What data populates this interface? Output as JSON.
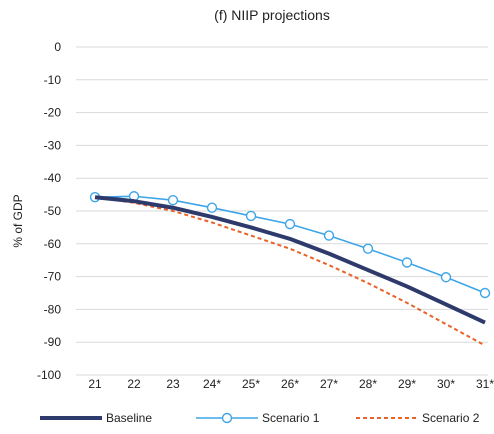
{
  "chart_data": {
    "type": "line",
    "title": "(f) NIIP projections",
    "xlabel": "",
    "ylabel": "% of GDP",
    "ylim": [
      -100,
      0
    ],
    "yticks": [
      "0",
      "-10",
      "-20",
      "-30",
      "-40",
      "-50",
      "-60",
      "-70",
      "-80",
      "-90",
      "-100"
    ],
    "ytick_values": [
      0,
      -10,
      -20,
      -30,
      -40,
      -50,
      -60,
      -70,
      -80,
      -90,
      -100
    ],
    "categories": [
      "21",
      "22",
      "23",
      "24*",
      "25*",
      "26*",
      "27*",
      "28*",
      "29*",
      "30*",
      "31*"
    ],
    "grid": "horizontal",
    "legend_position": "bottom",
    "series": [
      {
        "name": "Baseline",
        "color": "#2e3a6b",
        "style": "solid-thick",
        "values": [
          -45.8,
          -47.0,
          -49.0,
          -51.8,
          -55.0,
          -58.5,
          -63.0,
          -68.0,
          -73.0,
          -78.5,
          -84.0
        ]
      },
      {
        "name": "Scenario 1",
        "color": "#3ea5e8",
        "style": "line-with-open-circle-markers",
        "values": [
          -45.8,
          -45.5,
          -46.7,
          -49.0,
          -51.5,
          -54.0,
          -57.5,
          -61.5,
          -65.7,
          -70.2,
          -75.0
        ]
      },
      {
        "name": "Scenario 2",
        "color": "#e8622a",
        "style": "dashed",
        "values": [
          -45.8,
          -47.5,
          -50.0,
          -53.5,
          -57.5,
          -61.5,
          -66.5,
          -72.0,
          -78.0,
          -84.5,
          -91.0
        ]
      }
    ]
  }
}
